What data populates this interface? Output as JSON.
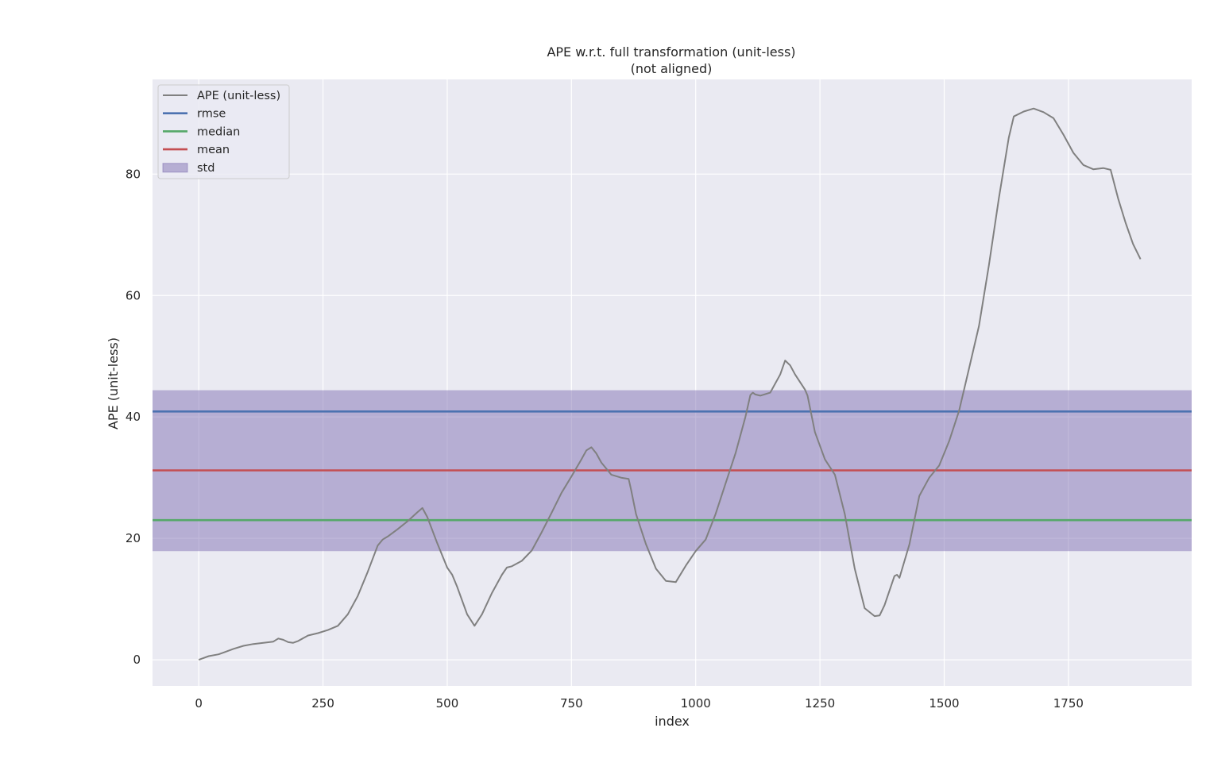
{
  "chart_data": {
    "type": "line",
    "title": "APE w.r.t. full transformation (unit-less)",
    "subtitle": "(not aligned)",
    "xlabel": "index",
    "ylabel": "APE (unit-less)",
    "xlim": [
      -93,
      1998
    ],
    "ylim": [
      -4.3,
      95.6
    ],
    "xticks": [
      0,
      250,
      500,
      750,
      1000,
      1250,
      1500,
      1750
    ],
    "yticks": [
      0,
      20,
      40,
      60,
      80
    ],
    "grid": true,
    "legend_position": "top-left",
    "colors": {
      "background": "#eaeaf2",
      "grid": "#ffffff",
      "ape": "#808080",
      "rmse": "#4c72b0",
      "median": "#55a868",
      "mean": "#c44e52",
      "std_fill": "#8172b3"
    },
    "stats": {
      "rmse": 40.9,
      "median": 23.0,
      "mean": 31.2,
      "std_low": 17.9,
      "std_high": 44.4
    },
    "legend": [
      {
        "label": "APE (unit-less)",
        "kind": "line",
        "color": "#808080"
      },
      {
        "label": "rmse",
        "kind": "line",
        "color": "#4c72b0"
      },
      {
        "label": "median",
        "kind": "line",
        "color": "#55a868"
      },
      {
        "label": "mean",
        "kind": "line",
        "color": "#c44e52"
      },
      {
        "label": "std",
        "kind": "patch",
        "color": "#8172b3"
      }
    ],
    "series": [
      {
        "name": "APE (unit-less)",
        "x": [
          0,
          20,
          40,
          50,
          70,
          90,
          110,
          130,
          150,
          160,
          170,
          180,
          190,
          200,
          220,
          240,
          260,
          280,
          300,
          320,
          340,
          360,
          370,
          380,
          400,
          420,
          440,
          450,
          460,
          480,
          500,
          510,
          520,
          540,
          555,
          570,
          590,
          610,
          620,
          630,
          650,
          670,
          690,
          710,
          730,
          750,
          770,
          780,
          790,
          800,
          810,
          830,
          850,
          865,
          870,
          880,
          900,
          920,
          940,
          960,
          980,
          1000,
          1020,
          1040,
          1060,
          1080,
          1100,
          1110,
          1115,
          1120,
          1130,
          1150,
          1170,
          1180,
          1190,
          1200,
          1220,
          1225,
          1240,
          1260,
          1280,
          1300,
          1320,
          1340,
          1360,
          1370,
          1380,
          1400,
          1405,
          1410,
          1430,
          1450,
          1470,
          1490,
          1510,
          1530,
          1550,
          1570,
          1590,
          1610,
          1630,
          1640,
          1660,
          1680,
          1700,
          1720,
          1740,
          1760,
          1780,
          1800,
          1820,
          1835,
          1850,
          1865,
          1880,
          1895
        ],
        "y": [
          0.0,
          0.6,
          0.9,
          1.2,
          1.8,
          2.3,
          2.6,
          2.8,
          3.0,
          3.5,
          3.3,
          2.9,
          2.8,
          3.1,
          4.0,
          4.4,
          4.9,
          5.6,
          7.5,
          10.5,
          14.5,
          18.8,
          19.8,
          20.3,
          21.5,
          22.8,
          24.3,
          25.0,
          23.5,
          19.2,
          15.2,
          14.0,
          12.0,
          7.5,
          5.6,
          7.5,
          11.0,
          14.0,
          15.2,
          15.4,
          16.3,
          18.0,
          21.0,
          24.2,
          27.5,
          30.2,
          33.0,
          34.5,
          35.0,
          34.0,
          32.5,
          30.5,
          30.0,
          29.8,
          28.0,
          24.0,
          19.0,
          15.0,
          13.0,
          12.8,
          15.5,
          17.9,
          19.8,
          24.0,
          29.0,
          34.0,
          40.0,
          43.6,
          44.0,
          43.7,
          43.5,
          44.0,
          47.0,
          49.3,
          48.5,
          47.0,
          44.5,
          43.5,
          37.5,
          33.0,
          30.5,
          24.0,
          15.0,
          8.5,
          7.2,
          7.3,
          9.0,
          13.8,
          14.0,
          13.5,
          19.0,
          27.0,
          30.0,
          32.0,
          36.0,
          41.0,
          48.0,
          55.0,
          65.0,
          76.0,
          86.0,
          89.5,
          90.3,
          90.8,
          90.2,
          89.2,
          86.5,
          83.5,
          81.5,
          80.8,
          81.0,
          80.7,
          76.0,
          72.0,
          68.5,
          66.0
        ]
      }
    ]
  }
}
